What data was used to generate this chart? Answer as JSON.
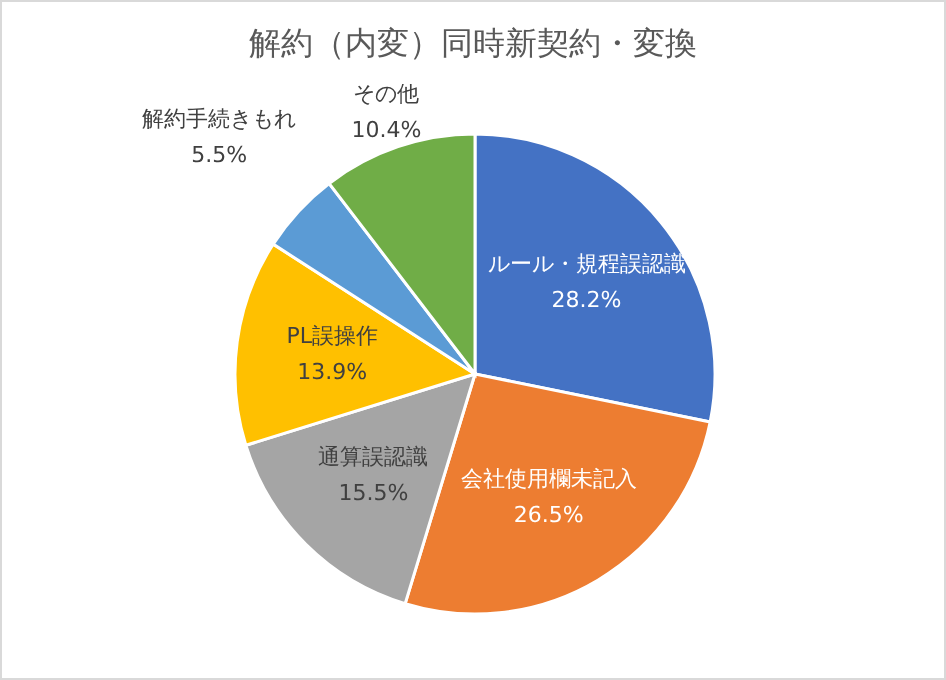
{
  "chart_data": {
    "type": "pie",
    "title": "解約（内変）同時新契約・変換",
    "categories": [
      "ルール・規程誤認識",
      "会社使用欄未記入",
      "通算誤認識",
      "PL誤操作",
      "解約手続きもれ",
      "その他"
    ],
    "values": [
      28.2,
      26.5,
      15.5,
      13.9,
      5.5,
      10.4
    ],
    "colors": [
      "#4472c4",
      "#ed7d31",
      "#a5a5a5",
      "#ffc000",
      "#5b9bd5",
      "#70ad47"
    ],
    "value_labels": [
      "28.2%",
      "26.5%",
      "15.5%",
      "13.9%",
      "5.5%",
      "10.4%"
    ]
  }
}
